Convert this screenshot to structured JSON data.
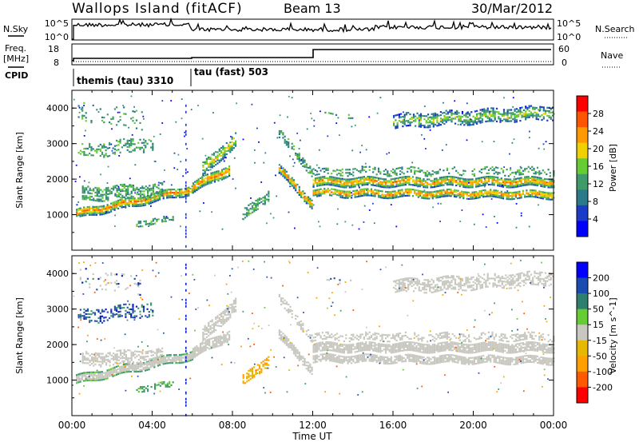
{
  "header": {
    "station": "Wallops Island (fitACF)",
    "beam": "Beam 13",
    "date": "30/Mar/2012"
  },
  "top_panels": {
    "nsky_label": "N.Sky",
    "nsearch_label": "N.Search",
    "freq_label_line1": "Freq.",
    "freq_label_line2": "[MHz]",
    "nave_label": "Nave",
    "cpid_label": "CPID",
    "nsky_ticks": [
      "10^5",
      "10^0"
    ],
    "nsearch_ticks": [
      "10^5",
      "10^0"
    ],
    "freq_ticks": [
      "18",
      "8"
    ],
    "nave_ticks": [
      "60",
      "0"
    ],
    "cpid_segments": [
      {
        "label": "themis (tau) 3310",
        "start_hour": 0.0
      },
      {
        "label": "tau (fast) 503",
        "start_hour": 5.9
      }
    ]
  },
  "chart_data": [
    {
      "type": "heatmap",
      "name": "power",
      "ylabel": "Slant Range [km]",
      "xlabel": "Time UT",
      "x_range_hours": [
        0,
        24
      ],
      "ylim": [
        0,
        4500
      ],
      "y_ticks": [
        "1000",
        "2000",
        "3000",
        "4000"
      ],
      "x_ticks": [
        "00:00",
        "04:00",
        "08:00",
        "12:00",
        "16:00",
        "20:00",
        "00:00"
      ],
      "colorbar": {
        "label": "Power [dB]",
        "ticks": [
          "28",
          "24",
          "20",
          "16",
          "12",
          "8",
          "4"
        ],
        "range": [
          0,
          32
        ],
        "colors": [
          "#0000ff",
          "#1a3cc8",
          "#2a7a8a",
          "#3f9b6a",
          "#66cc33",
          "#f0d000",
          "#ff9900",
          "#ff5500",
          "#ff0000"
        ]
      }
    },
    {
      "type": "heatmap",
      "name": "velocity",
      "ylabel": "Slant Range [km]",
      "xlabel": "Time UT",
      "x_range_hours": [
        0,
        24
      ],
      "ylim": [
        0,
        4500
      ],
      "y_ticks": [
        "1000",
        "2000",
        "3000",
        "4000"
      ],
      "x_ticks": [
        "00:00",
        "04:00",
        "08:00",
        "12:00",
        "16:00",
        "20:00",
        "00:00"
      ],
      "colorbar": {
        "label": "Velocity [m s^-1]",
        "ticks": [
          "200",
          "100",
          "50",
          "15",
          "-15",
          "-50",
          "-100",
          "-200"
        ],
        "range": [
          -250,
          250
        ],
        "colors": [
          "#ff0000",
          "#ff5a00",
          "#ff9f00",
          "#e6b800",
          "#c8c8c0",
          "#66cc33",
          "#2f7f6f",
          "#1a4bb0",
          "#0000ff"
        ]
      }
    }
  ],
  "xaxis": {
    "label": "Time UT",
    "ticks": [
      "00:00",
      "04:00",
      "08:00",
      "12:00",
      "16:00",
      "20:00",
      "00:00"
    ]
  }
}
